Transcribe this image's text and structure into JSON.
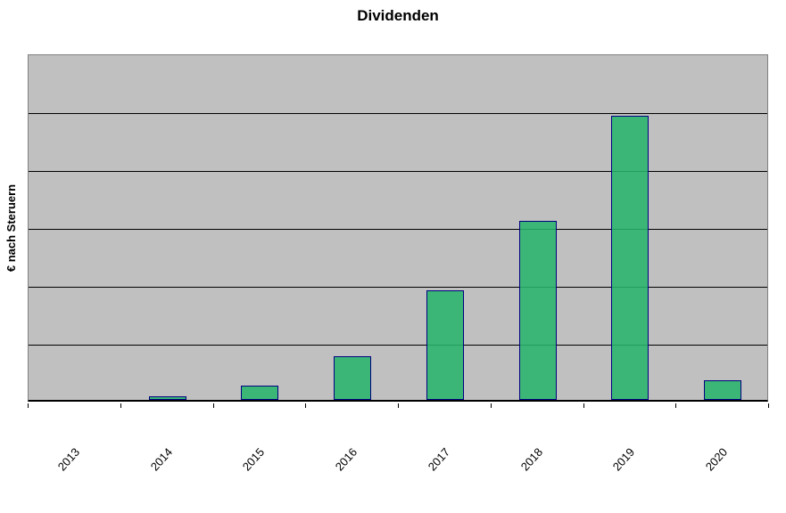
{
  "chart_data": {
    "type": "bar",
    "title": "Dividenden",
    "xlabel": "",
    "ylabel": "€ nach Steruern",
    "categories": [
      "2013",
      "2014",
      "2015",
      "2016",
      "2017",
      "2018",
      "2019",
      "2020"
    ],
    "values": [
      0,
      0.06,
      0.25,
      0.75,
      1.89,
      3.09,
      4.91,
      0.34
    ],
    "value_note": "y axis shows no numeric tick labels; values estimated in gridline intervals",
    "ylim": [
      0,
      6
    ],
    "gridline_intervals": 6,
    "grid": "horizontal",
    "legend": "none",
    "x_tick_label_rotation_deg": 48,
    "styles": {
      "plot_background": "#c0c0c0",
      "plot_border": "#808080",
      "gridline_color": "#000000",
      "axis_line_color": "#000000",
      "bar_fill": "rgba(40,180,107,0.87)",
      "bar_fill_apparent": "#3cb674",
      "bar_border": "#000080",
      "text_color": "#000000",
      "page_background": "#ffffff"
    }
  }
}
